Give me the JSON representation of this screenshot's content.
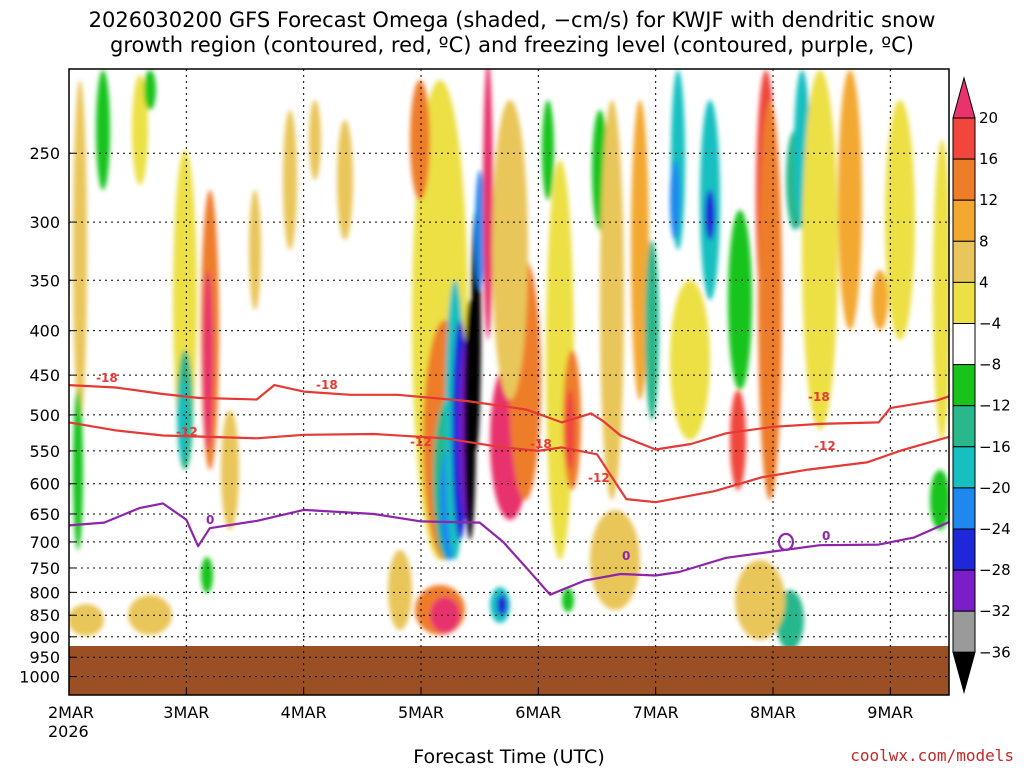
{
  "chart_data": {
    "type": "time-height contour",
    "title_line1": "2026030200 GFS Forecast Omega (shaded, −cm/s) for KWJF with dendritic snow",
    "title_line2": "growth region (contoured, red, ºC) and freezing level (contoured, purple, ºC)",
    "xlabel": "Forecast Time (UTC)",
    "credit": "coolwx.com/models",
    "x_ticks": [
      "2MAR",
      "3MAR",
      "4MAR",
      "5MAR",
      "6MAR",
      "7MAR",
      "8MAR",
      "9MAR"
    ],
    "x_year": "2026",
    "x_range_days": [
      0,
      7.5
    ],
    "y_ticks": [
      "250",
      "300",
      "350",
      "400",
      "450",
      "500",
      "550",
      "600",
      "650",
      "700",
      "750",
      "800",
      "850",
      "900",
      "950",
      "1000"
    ],
    "y_range_hpa": [
      200,
      1050
    ],
    "y_scale": "log-pressure",
    "colorbar_labels": [
      "20",
      "16",
      "12",
      "8",
      "4",
      "−4",
      "−8",
      "−12",
      "−16",
      "−20",
      "−24",
      "−28",
      "−32",
      "−36"
    ],
    "colorbar_colors": [
      "#e8336d",
      "#f0463c",
      "#ee7d2a",
      "#f3a830",
      "#e9c65a",
      "#ece044",
      "#ffffff",
      "#18c41c",
      "#28b88c",
      "#16c0c0",
      "#1e88ee",
      "#1e28d8",
      "#7a1ec8",
      "#9a9a9a",
      "#000000"
    ],
    "series": [
      {
        "name": "-18 isotherm (red)",
        "color": "#e53935",
        "label": "-18",
        "points": [
          [
            0.0,
            462
          ],
          [
            0.4,
            465
          ],
          [
            0.8,
            473
          ],
          [
            1.1,
            478
          ],
          [
            1.6,
            480
          ],
          [
            1.75,
            462
          ],
          [
            2.0,
            470
          ],
          [
            2.4,
            474
          ],
          [
            2.8,
            474
          ],
          [
            3.4,
            482
          ],
          [
            3.9,
            493
          ],
          [
            4.2,
            510
          ],
          [
            4.45,
            498
          ],
          [
            4.55,
            508
          ],
          [
            4.7,
            528
          ],
          [
            5.0,
            548
          ],
          [
            5.3,
            540
          ],
          [
            5.6,
            525
          ],
          [
            6.0,
            516
          ],
          [
            6.4,
            512
          ],
          [
            6.9,
            510
          ],
          [
            7.0,
            491
          ],
          [
            7.4,
            481
          ],
          [
            7.5,
            476
          ]
        ]
      },
      {
        "name": "-12 isotherm (red)",
        "color": "#e53935",
        "label": "-12",
        "points": [
          [
            0.0,
            510
          ],
          [
            0.4,
            521
          ],
          [
            0.8,
            528
          ],
          [
            1.2,
            530
          ],
          [
            1.6,
            532
          ],
          [
            2.0,
            527
          ],
          [
            2.6,
            526
          ],
          [
            3.2,
            532
          ],
          [
            3.7,
            545
          ],
          [
            4.0,
            550
          ],
          [
            4.2,
            545
          ],
          [
            4.5,
            555
          ],
          [
            4.75,
            625
          ],
          [
            5.0,
            630
          ],
          [
            5.5,
            612
          ],
          [
            5.9,
            590
          ],
          [
            6.3,
            578
          ],
          [
            6.8,
            567
          ],
          [
            7.1,
            549
          ],
          [
            7.5,
            530
          ]
        ]
      },
      {
        "name": "0C freezing level (purple)",
        "color": "#8e24aa",
        "label": "0",
        "points": [
          [
            0.0,
            670
          ],
          [
            0.3,
            665
          ],
          [
            0.6,
            640
          ],
          [
            0.8,
            632
          ],
          [
            1.0,
            660
          ],
          [
            1.1,
            708
          ],
          [
            1.2,
            675
          ],
          [
            1.6,
            662
          ],
          [
            2.0,
            643
          ],
          [
            2.6,
            650
          ],
          [
            3.0,
            663
          ],
          [
            3.5,
            665
          ],
          [
            3.7,
            700
          ],
          [
            3.9,
            750
          ],
          [
            4.1,
            805
          ],
          [
            4.4,
            775
          ],
          [
            4.7,
            762
          ],
          [
            5.0,
            765
          ],
          [
            5.2,
            758
          ],
          [
            5.6,
            730
          ],
          [
            6.0,
            718
          ],
          [
            6.4,
            706
          ],
          [
            6.9,
            705
          ],
          [
            7.2,
            692
          ],
          [
            7.5,
            664
          ]
        ]
      }
    ]
  }
}
